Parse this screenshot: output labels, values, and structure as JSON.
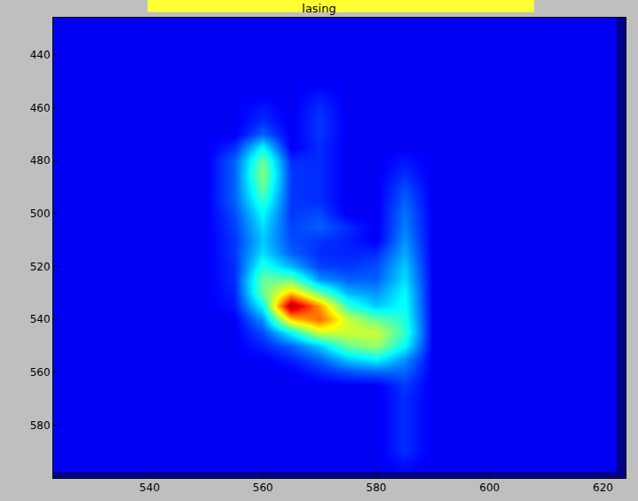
{
  "chart_data": {
    "type": "heatmap",
    "title": "lasing",
    "x": [
      525,
      530,
      535,
      540,
      545,
      550,
      555,
      560,
      565,
      570,
      575,
      580,
      585,
      590,
      595,
      600,
      605,
      610,
      615,
      620
    ],
    "y": [
      425,
      430,
      435,
      440,
      445,
      450,
      455,
      460,
      465,
      470,
      475,
      480,
      485,
      490,
      495,
      500,
      505,
      510,
      515,
      520,
      525,
      530,
      535,
      540,
      545,
      550,
      555,
      560,
      565,
      570,
      575,
      580,
      585,
      590,
      595
    ],
    "cells": [
      [
        1,
        1,
        1,
        1,
        1,
        1,
        1,
        1,
        1,
        1,
        1,
        1,
        1,
        1,
        1,
        1,
        1,
        1,
        1,
        1
      ],
      [
        1,
        1,
        1,
        1,
        1,
        1,
        1,
        1,
        1,
        1,
        1,
        1,
        1,
        1,
        1,
        1,
        1,
        1,
        1,
        1
      ],
      [
        1,
        1,
        1,
        1,
        1,
        1,
        1,
        1,
        1,
        1,
        1,
        1,
        1,
        1,
        1,
        1,
        1,
        1,
        1,
        1
      ],
      [
        1,
        1,
        1,
        1,
        1,
        1,
        1,
        1,
        1,
        1,
        1,
        1,
        1,
        1,
        1,
        1,
        1,
        1,
        1,
        1
      ],
      [
        1,
        1,
        1,
        1,
        1,
        1,
        1,
        1,
        1,
        1,
        1,
        1,
        1,
        1,
        1,
        1,
        1,
        1,
        1,
        1
      ],
      [
        1,
        1,
        1,
        1,
        1,
        1,
        1,
        1,
        1,
        1,
        1,
        1,
        1,
        1,
        1,
        1,
        1,
        1,
        1,
        1
      ],
      [
        1,
        1,
        1,
        1,
        1,
        1,
        1,
        1,
        1,
        1.3,
        1,
        1,
        1,
        1,
        1,
        1,
        1,
        1,
        1,
        1
      ],
      [
        1,
        1,
        1,
        1,
        1,
        1,
        1,
        1.3,
        1,
        1.5,
        1,
        1,
        1,
        1,
        1,
        1,
        1,
        1,
        1,
        1
      ],
      [
        1,
        1,
        1,
        1,
        1,
        1,
        1,
        1.5,
        1,
        1.6,
        1,
        1,
        1,
        1,
        1,
        1,
        1,
        1,
        1,
        1
      ],
      [
        1,
        1,
        1,
        1,
        1,
        1,
        1,
        2,
        1,
        1.6,
        1,
        1,
        1,
        1,
        1,
        1,
        1,
        1,
        1,
        1
      ],
      [
        1,
        1,
        1,
        1,
        1,
        1,
        1.5,
        3.5,
        1,
        1.5,
        1,
        1,
        1,
        1,
        1,
        1,
        1,
        1,
        1,
        1
      ],
      [
        1,
        1,
        1,
        1,
        1,
        1,
        2,
        4.5,
        1.5,
        1.5,
        1,
        1,
        1.3,
        1,
        1,
        1,
        1,
        1,
        1,
        1
      ],
      [
        1,
        1,
        1,
        1,
        1,
        1,
        2,
        4.8,
        1.6,
        1.5,
        1,
        1,
        1.5,
        1,
        1,
        1,
        1,
        1,
        1,
        1
      ],
      [
        1,
        1,
        1,
        1,
        1,
        1,
        2,
        4.5,
        1.6,
        1.5,
        1,
        1,
        1.8,
        1,
        1,
        1,
        1,
        1,
        1,
        1
      ],
      [
        1,
        1,
        1,
        1,
        1,
        1,
        2,
        4,
        1.6,
        1.5,
        1,
        1,
        2,
        1,
        1,
        1,
        1,
        1,
        1,
        1
      ],
      [
        1,
        1,
        1,
        1,
        1,
        1,
        1.8,
        3.5,
        1.6,
        1.8,
        1,
        1,
        2.2,
        1,
        1,
        1,
        1,
        1,
        1,
        1
      ],
      [
        1,
        1,
        1,
        1,
        1,
        1,
        1.7,
        3.2,
        1.7,
        2,
        1.5,
        1,
        2.3,
        1,
        1,
        1,
        1,
        1,
        1,
        1
      ],
      [
        1,
        1,
        1,
        1,
        1,
        1,
        1.6,
        3,
        1.8,
        1.6,
        1.4,
        1,
        2.5,
        1,
        1,
        1,
        1,
        1,
        1,
        1
      ],
      [
        1,
        1,
        1,
        1,
        1,
        1,
        1.6,
        3.2,
        2,
        1.5,
        1.4,
        1.5,
        2.7,
        1,
        1,
        1,
        1,
        1,
        1,
        1
      ],
      [
        1,
        1,
        1,
        1,
        1,
        1,
        1.5,
        3.8,
        2.8,
        1.7,
        1.6,
        1.8,
        3,
        1,
        1,
        1,
        1,
        1,
        1,
        1
      ],
      [
        1,
        1,
        1,
        1,
        1,
        1,
        1.5,
        4.5,
        4.5,
        2.5,
        2,
        2,
        3.2,
        1,
        1,
        1,
        1,
        1,
        1,
        1
      ],
      [
        1,
        1,
        1,
        1,
        1,
        1,
        1.4,
        4.5,
        6.5,
        4.5,
        2.8,
        2.5,
        3.5,
        1,
        1,
        1,
        1,
        1,
        1,
        1
      ],
      [
        1,
        1,
        1,
        1,
        1,
        1,
        1.3,
        3.5,
        9.5,
        7,
        4,
        3,
        3.6,
        1,
        1,
        1,
        1,
        1,
        1,
        1
      ],
      [
        1,
        1,
        1,
        1,
        1,
        1,
        1,
        2.5,
        6.5,
        7.5,
        5.5,
        4.5,
        3.8,
        1,
        1,
        1,
        1,
        1,
        1,
        1
      ],
      [
        1,
        1,
        1,
        1,
        1,
        1,
        1,
        1.8,
        3.5,
        5.5,
        5.5,
        5.5,
        4,
        1,
        1,
        1,
        1,
        1,
        1,
        1
      ],
      [
        1,
        1,
        1,
        1,
        1,
        1,
        1,
        1.4,
        2,
        3,
        4.5,
        5,
        3.5,
        1,
        1,
        1,
        1,
        1,
        1,
        1
      ],
      [
        1,
        1,
        1,
        1,
        1,
        1,
        1,
        1,
        1.4,
        2,
        3,
        3.5,
        2.5,
        1,
        1,
        1,
        1,
        1,
        1,
        1
      ],
      [
        1,
        1,
        1,
        1,
        1,
        1,
        1,
        1,
        1,
        1.4,
        1.8,
        2,
        2,
        1,
        1,
        1,
        1,
        1,
        1,
        1
      ],
      [
        1,
        1,
        1,
        1,
        1,
        1,
        1,
        1,
        1,
        1,
        1,
        1,
        1.6,
        1,
        1,
        1,
        1,
        1,
        1,
        1
      ],
      [
        1,
        1,
        1,
        1,
        1,
        1,
        1,
        1,
        1,
        1,
        1,
        1,
        1.5,
        1,
        1,
        1,
        1,
        1,
        1,
        1
      ],
      [
        1,
        1,
        1,
        1,
        1,
        1,
        1,
        1,
        1,
        1,
        1,
        1,
        1.5,
        1,
        1,
        1,
        1,
        1,
        1,
        1
      ],
      [
        1,
        1,
        1,
        1,
        1,
        1,
        1,
        1,
        1,
        1,
        1,
        1,
        1.5,
        1,
        1,
        1,
        1,
        1,
        1,
        1
      ],
      [
        1,
        1,
        1,
        1,
        1,
        1,
        1,
        1,
        1,
        1,
        1,
        1,
        1.5,
        1,
        1,
        1,
        1,
        1,
        1,
        1
      ],
      [
        1,
        1,
        1,
        1,
        1,
        1,
        1,
        1,
        1,
        1,
        1,
        1,
        1.5,
        1,
        1,
        1,
        1,
        1,
        1,
        1
      ],
      [
        1,
        1,
        1,
        1,
        1,
        1,
        1,
        1,
        1,
        1,
        1,
        1,
        1.2,
        1,
        1,
        1,
        1,
        1,
        1,
        1
      ]
    ],
    "zlim": [
      0,
      10
    ],
    "xlim": [
      523,
      624
    ],
    "ylim": [
      600,
      426
    ],
    "xticks": [
      540,
      560,
      580,
      600,
      620
    ],
    "yticks": [
      440,
      460,
      480,
      500,
      520,
      540,
      560,
      580
    ]
  }
}
